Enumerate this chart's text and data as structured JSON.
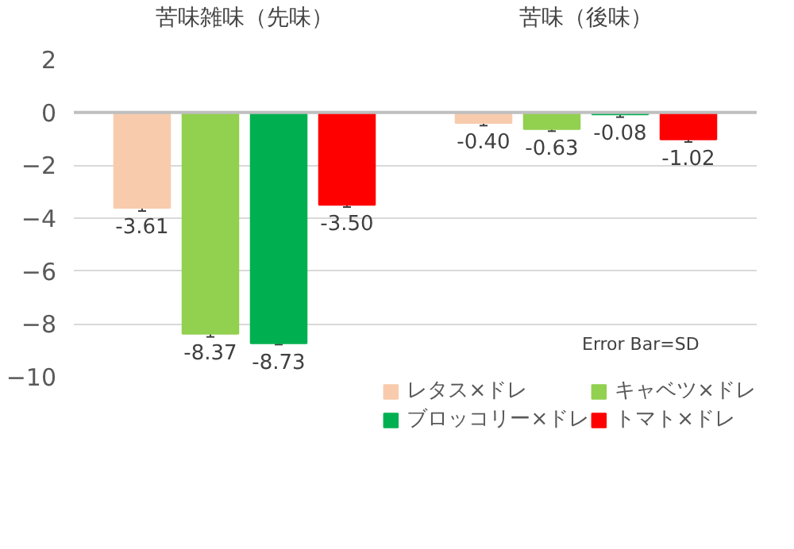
{
  "chart_data": {
    "type": "bar",
    "categories": [
      "苦味雑味（先味）",
      "苦味（後味）"
    ],
    "series": [
      {
        "name": "レタス×ドレ",
        "color": "#f8cbad",
        "values": [
          -3.61,
          -0.4
        ],
        "value_labels": [
          "-3.61",
          "-0.40"
        ],
        "errors": [
          0.12,
          0.1
        ]
      },
      {
        "name": "キャベツ×ドレ",
        "color": "#92d050",
        "values": [
          -8.37,
          -0.63
        ],
        "value_labels": [
          "-8.37",
          "-0.63"
        ],
        "errors": [
          0.12,
          0.08
        ]
      },
      {
        "name": "ブロッコリー×ドレ",
        "color": "#00b050",
        "values": [
          -8.73,
          -0.08
        ],
        "value_labels": [
          "-8.73",
          "-0.08"
        ],
        "errors": [
          0.05,
          0.1
        ]
      },
      {
        "name": "トマト×ドレ",
        "color": "#ff0000",
        "values": [
          -3.5,
          -1.02
        ],
        "value_labels": [
          "-3.50",
          "-1.02"
        ],
        "errors": [
          0.08,
          0.1
        ]
      }
    ],
    "ylim": [
      -10,
      2
    ],
    "yticks": [
      -10,
      -8,
      -6,
      -4,
      -2,
      0,
      2
    ],
    "grid": "y",
    "legend": "bottom",
    "data_labels": true,
    "annotations": [
      "Error Bar=SD"
    ]
  }
}
